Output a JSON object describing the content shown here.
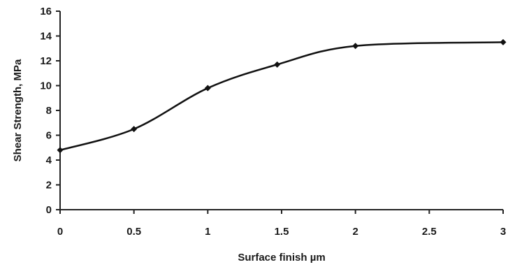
{
  "chart_data": {
    "type": "line",
    "xlabel": "Surface finish µm",
    "ylabel": "Shear Strength, MPa",
    "xlim": [
      0,
      3
    ],
    "ylim": [
      0,
      16
    ],
    "x_ticks": [
      "0",
      "0.5",
      "1",
      "1.5",
      "2",
      "2.5",
      "3"
    ],
    "y_ticks": [
      "0",
      "2",
      "4",
      "6",
      "8",
      "10",
      "12",
      "14",
      "16"
    ],
    "grid": false,
    "legend": "none",
    "smooth": true,
    "line_color": "#111111",
    "series": [
      {
        "x": [
          0,
          0.5,
          1,
          1.47,
          2,
          3
        ],
        "y": [
          4.8,
          6.5,
          9.8,
          11.7,
          13.2,
          13.5
        ]
      }
    ]
  }
}
